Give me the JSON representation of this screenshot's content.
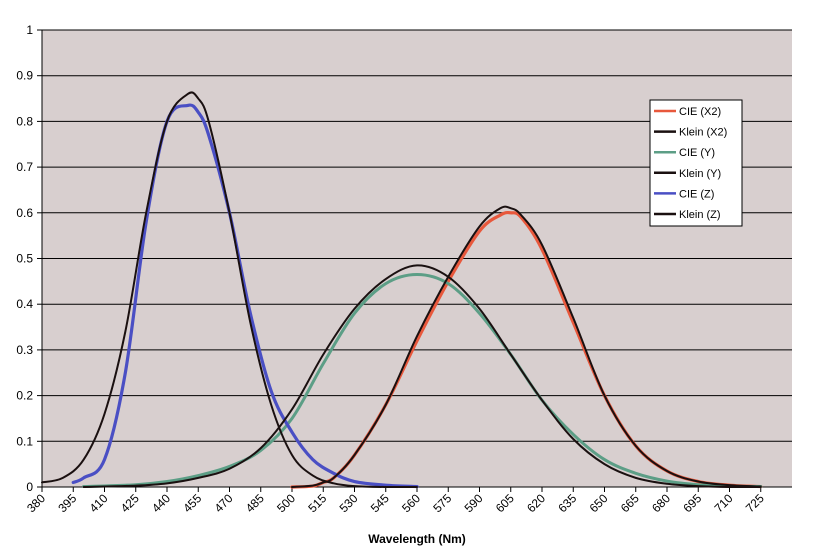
{
  "chart_data": {
    "type": "line",
    "title": "",
    "xlabel": "Wavelength (Nm)",
    "ylabel": "",
    "xlim": [
      380,
      740
    ],
    "ylim": [
      0,
      1
    ],
    "grid": true,
    "legend_position": "top-right",
    "x_ticks": [
      "380",
      "395",
      "410",
      "425",
      "440",
      "455",
      "470",
      "485",
      "500",
      "515",
      "530",
      "545",
      "560",
      "575",
      "590",
      "605",
      "620",
      "635",
      "650",
      "665",
      "680",
      "695",
      "710",
      "725"
    ],
    "y_ticks": [
      "0",
      "0.1",
      "0.2",
      "0.3",
      "0.4",
      "0.5",
      "0.6",
      "0.7",
      "0.8",
      "0.9",
      "1"
    ],
    "colors": {
      "plot_background": "#d8cfcf",
      "grid": "#000000",
      "cie_x": "#e8583c",
      "cie_y": "#5c9e86",
      "cie_z": "#4a4fc4",
      "klein": "#1a1010"
    },
    "series": [
      {
        "name": "CIE (X2)",
        "color": "#e8583c",
        "width": 3.2,
        "x": [
          500,
          510,
          515,
          520,
          530,
          545,
          560,
          575,
          590,
          600,
          605,
          610,
          620,
          635,
          650,
          665,
          680,
          695,
          710,
          725
        ],
        "y": [
          0.0,
          0.002,
          0.01,
          0.02,
          0.07,
          0.18,
          0.32,
          0.45,
          0.56,
          0.595,
          0.6,
          0.59,
          0.52,
          0.36,
          0.2,
          0.09,
          0.035,
          0.012,
          0.004,
          0.001
        ]
      },
      {
        "name": "Klein (X2)",
        "color": "#1a1010",
        "width": 2,
        "x": [
          500,
          510,
          515,
          520,
          530,
          545,
          560,
          575,
          590,
          600,
          605,
          610,
          620,
          635,
          650,
          665,
          680,
          695,
          710,
          725
        ],
        "y": [
          0.0,
          0.003,
          0.01,
          0.02,
          0.07,
          0.18,
          0.33,
          0.46,
          0.57,
          0.61,
          0.61,
          0.595,
          0.53,
          0.37,
          0.2,
          0.09,
          0.035,
          0.012,
          0.004,
          0.001
        ]
      },
      {
        "name": "CIE (Y)",
        "color": "#5c9e86",
        "width": 3,
        "x": [
          400,
          425,
          440,
          455,
          470,
          485,
          500,
          515,
          530,
          545,
          560,
          575,
          590,
          605,
          620,
          635,
          650,
          665,
          680,
          695,
          710,
          725
        ],
        "y": [
          0.001,
          0.005,
          0.012,
          0.025,
          0.045,
          0.08,
          0.15,
          0.27,
          0.38,
          0.445,
          0.465,
          0.445,
          0.38,
          0.29,
          0.19,
          0.115,
          0.06,
          0.03,
          0.013,
          0.005,
          0.002,
          0.001
        ]
      },
      {
        "name": "Klein (Y)",
        "color": "#1a1010",
        "width": 2,
        "x": [
          400,
          425,
          440,
          455,
          470,
          485,
          500,
          515,
          530,
          545,
          560,
          575,
          590,
          605,
          620,
          635,
          650,
          665,
          680,
          695,
          710,
          725
        ],
        "y": [
          0.0,
          0.003,
          0.008,
          0.02,
          0.04,
          0.085,
          0.17,
          0.29,
          0.39,
          0.455,
          0.485,
          0.46,
          0.39,
          0.29,
          0.19,
          0.105,
          0.05,
          0.02,
          0.007,
          0.002,
          0.0,
          0.0
        ]
      },
      {
        "name": "CIE (Z)",
        "color": "#4a4fc4",
        "width": 3.2,
        "x": [
          395,
          400,
          410,
          420,
          430,
          440,
          450,
          455,
          460,
          470,
          480,
          490,
          500,
          510,
          520,
          530,
          545,
          560
        ],
        "y": [
          0.01,
          0.02,
          0.06,
          0.25,
          0.58,
          0.8,
          0.835,
          0.82,
          0.77,
          0.6,
          0.38,
          0.21,
          0.12,
          0.06,
          0.03,
          0.012,
          0.004,
          0.001
        ]
      },
      {
        "name": "Klein (Z)",
        "color": "#1a1010",
        "width": 2,
        "x": [
          380,
          390,
          400,
          410,
          420,
          430,
          440,
          450,
          455,
          460,
          470,
          480,
          490,
          500,
          510,
          520,
          530,
          545,
          560
        ],
        "y": [
          0.01,
          0.02,
          0.06,
          0.16,
          0.34,
          0.6,
          0.8,
          0.86,
          0.85,
          0.8,
          0.6,
          0.36,
          0.18,
          0.07,
          0.025,
          0.008,
          0.002,
          0.0,
          0.0
        ]
      }
    ]
  }
}
